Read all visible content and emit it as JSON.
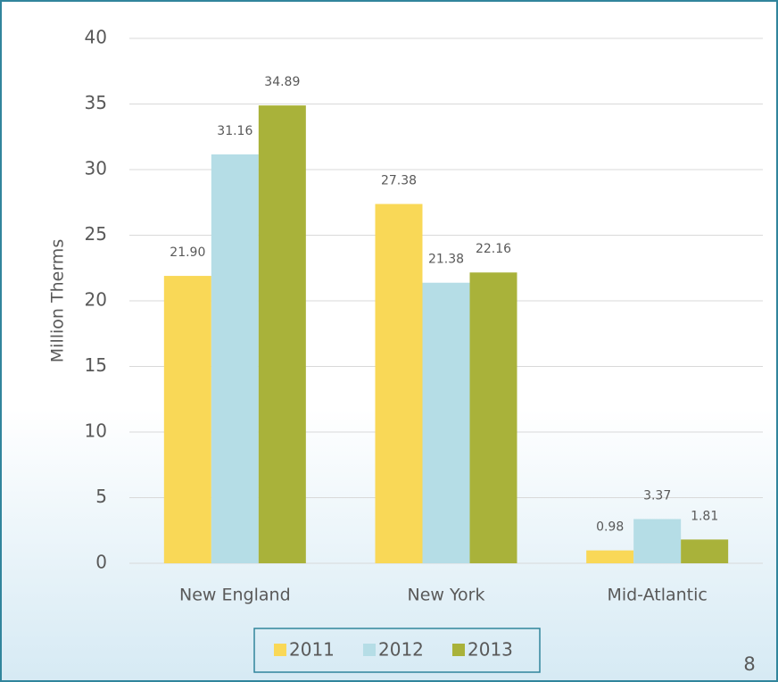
{
  "chart_data": {
    "type": "bar",
    "y_label": "Million Therms",
    "categories": [
      "New England",
      "New York",
      "Mid-Atlantic"
    ],
    "series": [
      {
        "name": "2011",
        "color": "#f9d857",
        "values": [
          21.9,
          27.38,
          0.98
        ],
        "value_labels": [
          "21.90",
          "27.38",
          "0.98"
        ]
      },
      {
        "name": "2012",
        "color": "#b5dde6",
        "values": [
          31.16,
          21.38,
          3.37
        ],
        "value_labels": [
          "31.16",
          "21.38",
          "3.37"
        ]
      },
      {
        "name": "2013",
        "color": "#a9b23a",
        "values": [
          34.89,
          22.16,
          1.81
        ],
        "value_labels": [
          "34.89",
          "22.16",
          "1.81"
        ]
      }
    ],
    "ylim": [
      0,
      40
    ],
    "yticks": [
      0,
      5,
      10,
      15,
      20,
      25,
      30,
      35,
      40
    ],
    "grid": true,
    "legend": "bottom"
  },
  "page_number": "8"
}
